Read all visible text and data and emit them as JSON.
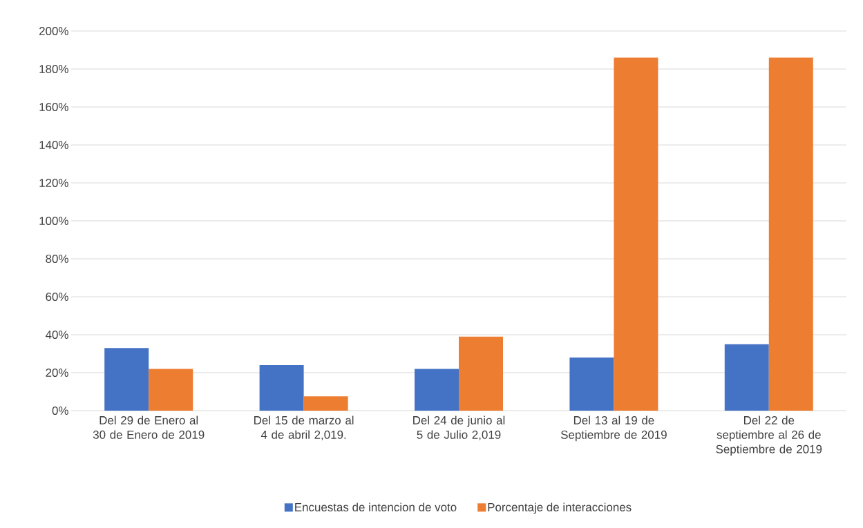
{
  "chart_data": {
    "type": "bar",
    "categories": [
      "Del 29 de Enero al 30 de Enero de 2019",
      "Del 15 de marzo al 4 de abril 2,019.",
      "Del 24 de junio al 5 de Julio 2,019",
      "Del 13 al 19 de Septiembre de 2019",
      "Del 22 de septiembre al 26 de Septiembre de 2019"
    ],
    "series": [
      {
        "name": "Encuestas de intencion de voto",
        "color": "#4472c4",
        "values": [
          33,
          24,
          22,
          28,
          35
        ]
      },
      {
        "name": "Porcentaje de interacciones",
        "color": "#ed7d31",
        "values": [
          22,
          7.5,
          39,
          186,
          186
        ]
      }
    ],
    "ylim": [
      0,
      200
    ],
    "yticks": [
      {
        "value": 0,
        "label": "0%"
      },
      {
        "value": 20,
        "label": "20%"
      },
      {
        "value": 40,
        "label": "40%"
      },
      {
        "value": 60,
        "label": "60%"
      },
      {
        "value": 80,
        "label": "80%"
      },
      {
        "value": 100,
        "label": "100%"
      },
      {
        "value": 120,
        "label": "120%"
      },
      {
        "value": 140,
        "label": "140%"
      },
      {
        "value": 160,
        "label": "160%"
      },
      {
        "value": 180,
        "label": "180%"
      },
      {
        "value": 200,
        "label": "200%"
      }
    ],
    "grid": "y",
    "legend": "bottom"
  }
}
